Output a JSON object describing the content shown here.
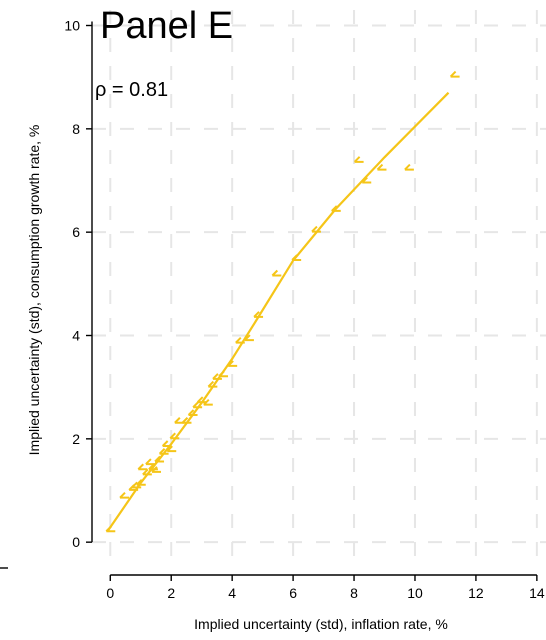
{
  "chart_data": {
    "type": "scatter",
    "title": "Panel E",
    "annotation": "ρ = 0.81",
    "xlabel": "Implied uncertainty (std), inflation rate, %",
    "ylabel": "Implied uncertainty (std), consumption growth rate, %",
    "xlim": [
      -0.6,
      14.3
    ],
    "ylim": [
      -0.5,
      10.3
    ],
    "xticks": [
      0,
      2,
      4,
      6,
      8,
      10,
      12,
      14
    ],
    "yticks": [
      0,
      2,
      4,
      6,
      8,
      10
    ],
    "xtick_labels": [
      "0",
      "2",
      "4",
      "6",
      "8",
      "10",
      "12",
      "14"
    ],
    "ytick_labels": [
      "0",
      "2",
      "4",
      "6",
      "8",
      "10"
    ],
    "grid": true,
    "marker_color": "#f5c518",
    "line_color": "#f5c518",
    "points": [
      {
        "x": 0.0,
        "y": 0.25
      },
      {
        "x": 0.45,
        "y": 0.9
      },
      {
        "x": 0.75,
        "y": 1.05
      },
      {
        "x": 0.85,
        "y": 1.1
      },
      {
        "x": 1.0,
        "y": 1.15
      },
      {
        "x": 1.05,
        "y": 1.45
      },
      {
        "x": 1.2,
        "y": 1.35
      },
      {
        "x": 1.3,
        "y": 1.55
      },
      {
        "x": 1.4,
        "y": 1.45
      },
      {
        "x": 1.5,
        "y": 1.4
      },
      {
        "x": 1.6,
        "y": 1.6
      },
      {
        "x": 1.75,
        "y": 1.75
      },
      {
        "x": 1.85,
        "y": 1.9
      },
      {
        "x": 2.0,
        "y": 1.8
      },
      {
        "x": 2.1,
        "y": 2.05
      },
      {
        "x": 2.25,
        "y": 2.35
      },
      {
        "x": 2.5,
        "y": 2.35
      },
      {
        "x": 2.7,
        "y": 2.5
      },
      {
        "x": 2.85,
        "y": 2.65
      },
      {
        "x": 3.0,
        "y": 2.75
      },
      {
        "x": 3.2,
        "y": 2.7
      },
      {
        "x": 3.35,
        "y": 3.05
      },
      {
        "x": 3.5,
        "y": 3.2
      },
      {
        "x": 3.7,
        "y": 3.25
      },
      {
        "x": 4.0,
        "y": 3.45
      },
      {
        "x": 4.25,
        "y": 3.9
      },
      {
        "x": 4.55,
        "y": 3.95
      },
      {
        "x": 4.85,
        "y": 4.4
      },
      {
        "x": 5.45,
        "y": 5.2
      },
      {
        "x": 6.1,
        "y": 5.5
      },
      {
        "x": 6.75,
        "y": 6.05
      },
      {
        "x": 7.4,
        "y": 6.45
      },
      {
        "x": 8.15,
        "y": 7.4
      },
      {
        "x": 8.4,
        "y": 7.0
      },
      {
        "x": 8.9,
        "y": 7.25
      },
      {
        "x": 9.8,
        "y": 7.25
      },
      {
        "x": 11.3,
        "y": 9.05
      }
    ],
    "fit_line": [
      {
        "x": -0.1,
        "y": 0.2
      },
      {
        "x": 1.0,
        "y": 1.15
      },
      {
        "x": 2.0,
        "y": 1.9
      },
      {
        "x": 3.0,
        "y": 2.7
      },
      {
        "x": 4.0,
        "y": 3.55
      },
      {
        "x": 4.8,
        "y": 4.3
      },
      {
        "x": 6.0,
        "y": 5.45
      },
      {
        "x": 7.4,
        "y": 6.45
      },
      {
        "x": 9.0,
        "y": 7.45
      },
      {
        "x": 11.1,
        "y": 8.7
      }
    ]
  }
}
